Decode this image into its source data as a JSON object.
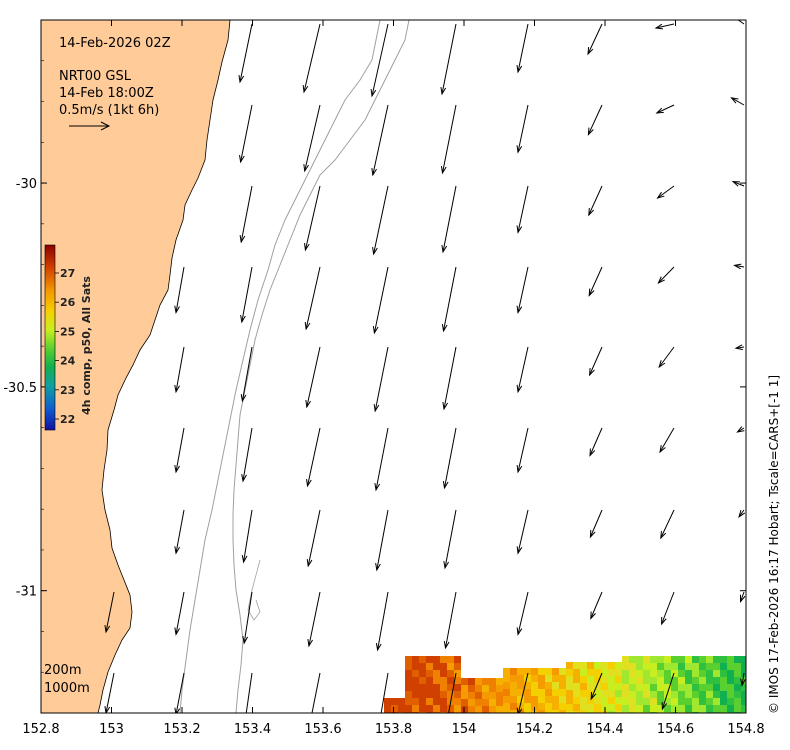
{
  "title": {
    "date": "14-Feb-2026 02Z",
    "product": "NRT00 GSL",
    "valid": "14-Feb 18:00Z",
    "scale": "0.5m/s (1kt 6h)"
  },
  "colorbar": {
    "label": "4h comp, p50, All Sats",
    "ticks": [
      "27",
      "26",
      "25",
      "24",
      "23",
      "22"
    ],
    "colors": [
      "#8b0000",
      "#d04000",
      "#f59a00",
      "#f5d000",
      "#c8ee20",
      "#5ad030",
      "#10b050",
      "#10a0a0",
      "#1060d0",
      "#1010a0"
    ]
  },
  "contours": {
    "depth1": "200m",
    "depth2": "1000m"
  },
  "credit": "© IMOS 17-Feb-2026 16:17 Hobart; Tscale=CARS+[-1 1]",
  "axes": {
    "x_ticks": [
      "152.8",
      "153",
      "153.2",
      "153.4",
      "153.6",
      "153.8",
      "154",
      "154.2",
      "154.4",
      "154.6",
      "154.8"
    ],
    "y_ticks": [
      "-30",
      "-30.5",
      "-31"
    ],
    "x_range": [
      152.8,
      154.8
    ],
    "y_range": [
      -31.3,
      -29.6
    ]
  },
  "colors": {
    "land": "#ffcc99",
    "contour": "#a0a0a0",
    "arrow": "#000000"
  }
}
